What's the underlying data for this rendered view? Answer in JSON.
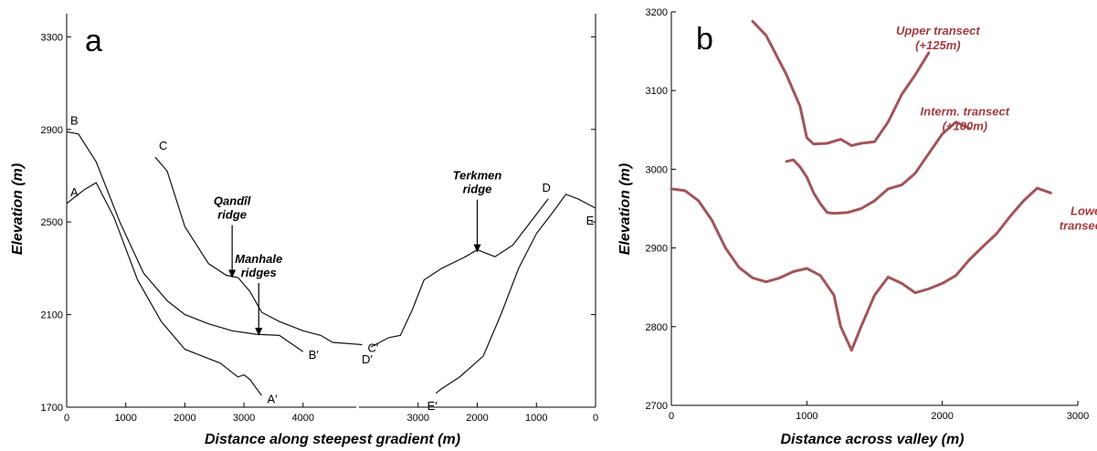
{
  "chart_data": [
    {
      "type": "line",
      "panel": "a",
      "xlabel": "Distance along steepest gradient (m)",
      "ylabel": "Elevation (m)",
      "ylim": [
        1700,
        3400
      ],
      "yticks": [
        "1700",
        "2100",
        "2500",
        "2900",
        "3300"
      ],
      "xticks_left": [
        "0",
        "1000",
        "2000",
        "3000",
        "4000"
      ],
      "xticks_right": [
        "3000",
        "2000",
        "1000",
        "0"
      ],
      "profiles_left": [
        {
          "start": "A",
          "end": "A′",
          "points": [
            [
              0,
              2580
            ],
            [
              300,
              2640
            ],
            [
              500,
              2670
            ],
            [
              800,
              2520
            ],
            [
              1200,
              2250
            ],
            [
              1600,
              2070
            ],
            [
              2000,
              1950
            ],
            [
              2300,
              1920
            ],
            [
              2600,
              1890
            ],
            [
              2900,
              1830
            ],
            [
              3000,
              1840
            ],
            [
              3100,
              1820
            ],
            [
              3300,
              1750
            ]
          ]
        },
        {
          "start": "B",
          "end": "B′",
          "points": [
            [
              0,
              2890
            ],
            [
              200,
              2880
            ],
            [
              500,
              2760
            ],
            [
              900,
              2500
            ],
            [
              1300,
              2280
            ],
            [
              1700,
              2160
            ],
            [
              2000,
              2100
            ],
            [
              2400,
              2060
            ],
            [
              2800,
              2030
            ],
            [
              3200,
              2015
            ],
            [
              3600,
              2010
            ],
            [
              4000,
              1940
            ]
          ]
        },
        {
          "start": "C",
          "end": "C′",
          "points": [
            [
              1500,
              2780
            ],
            [
              1700,
              2720
            ],
            [
              2000,
              2480
            ],
            [
              2400,
              2320
            ],
            [
              2700,
              2270
            ],
            [
              2900,
              2260
            ],
            [
              3100,
              2200
            ],
            [
              3300,
              2110
            ],
            [
              3600,
              2070
            ],
            [
              4000,
              2030
            ],
            [
              4300,
              2010
            ],
            [
              4500,
              1980
            ],
            [
              5000,
              1970
            ]
          ]
        }
      ],
      "profiles_right": [
        {
          "start": "D′",
          "end": "D",
          "points": [
            [
              3800,
              1960
            ],
            [
              3500,
              2000
            ],
            [
              3300,
              2010
            ],
            [
              3100,
              2120
            ],
            [
              2900,
              2250
            ],
            [
              2600,
              2300
            ],
            [
              2200,
              2350
            ],
            [
              2000,
              2380
            ],
            [
              1700,
              2350
            ],
            [
              1400,
              2400
            ],
            [
              1100,
              2500
            ],
            [
              800,
              2600
            ]
          ]
        },
        {
          "start": "E′",
          "end": "E",
          "points": [
            [
              2700,
              1760
            ],
            [
              2600,
              1780
            ],
            [
              2300,
              1830
            ],
            [
              1900,
              1920
            ],
            [
              1600,
              2100
            ],
            [
              1300,
              2300
            ],
            [
              1000,
              2450
            ],
            [
              700,
              2550
            ],
            [
              500,
              2620
            ],
            [
              300,
              2600
            ],
            [
              0,
              2560
            ]
          ]
        }
      ],
      "annotations": [
        {
          "text": [
            "Qandîl",
            "ridge"
          ],
          "x": 2800,
          "y": 2250,
          "side": "left"
        },
        {
          "text": [
            "Manhale",
            "ridges"
          ],
          "x": 3250,
          "y": 2000,
          "side": "left"
        },
        {
          "text": [
            "Terkmen",
            "ridge"
          ],
          "x": 2000,
          "y": 2360,
          "side": "right"
        }
      ]
    },
    {
      "type": "line",
      "panel": "b",
      "xlabel": "Distance across valley (m)",
      "ylabel": "Elevation (m)",
      "xlim": [
        0,
        3000
      ],
      "ylim": [
        2700,
        3200
      ],
      "xticks": [
        "0",
        "1000",
        "2000",
        "3000"
      ],
      "yticks": [
        "2700",
        "2800",
        "2900",
        "3000",
        "3100",
        "3200"
      ],
      "series": [
        {
          "name": [
            "Upper transect",
            "(+125m)"
          ],
          "points": [
            [
              600,
              3188
            ],
            [
              700,
              3170
            ],
            [
              850,
              3120
            ],
            [
              950,
              3080
            ],
            [
              1000,
              3040
            ],
            [
              1050,
              3032
            ],
            [
              1150,
              3033
            ],
            [
              1250,
              3038
            ],
            [
              1330,
              3030
            ],
            [
              1400,
              3033
            ],
            [
              1500,
              3035
            ],
            [
              1600,
              3060
            ],
            [
              1700,
              3095
            ],
            [
              1800,
              3120
            ],
            [
              1900,
              3148
            ]
          ]
        },
        {
          "name": [
            "Interm. transect",
            "(+100m)"
          ],
          "points": [
            [
              850,
              3010
            ],
            [
              900,
              3012
            ],
            [
              950,
              3003
            ],
            [
              1000,
              2990
            ],
            [
              1050,
              2970
            ],
            [
              1100,
              2956
            ],
            [
              1150,
              2945
            ],
            [
              1200,
              2944
            ],
            [
              1300,
              2945
            ],
            [
              1400,
              2950
            ],
            [
              1500,
              2960
            ],
            [
              1600,
              2975
            ],
            [
              1700,
              2980
            ],
            [
              1800,
              2995
            ],
            [
              1900,
              3020
            ],
            [
              2000,
              3045
            ],
            [
              2100,
              3060
            ],
            [
              2200,
              3052
            ]
          ]
        },
        {
          "name": [
            "Lower",
            "transect"
          ],
          "points": [
            [
              0,
              2975
            ],
            [
              100,
              2973
            ],
            [
              200,
              2960
            ],
            [
              300,
              2935
            ],
            [
              400,
              2900
            ],
            [
              500,
              2875
            ],
            [
              600,
              2862
            ],
            [
              700,
              2857
            ],
            [
              800,
              2862
            ],
            [
              900,
              2870
            ],
            [
              1000,
              2874
            ],
            [
              1100,
              2865
            ],
            [
              1200,
              2840
            ],
            [
              1250,
              2800
            ],
            [
              1330,
              2770
            ],
            [
              1400,
              2800
            ],
            [
              1500,
              2840
            ],
            [
              1600,
              2863
            ],
            [
              1700,
              2855
            ],
            [
              1800,
              2843
            ],
            [
              1900,
              2848
            ],
            [
              2000,
              2855
            ],
            [
              2100,
              2865
            ],
            [
              2200,
              2885
            ],
            [
              2300,
              2902
            ],
            [
              2400,
              2918
            ],
            [
              2500,
              2940
            ],
            [
              2600,
              2960
            ],
            [
              2700,
              2976
            ],
            [
              2800,
              2970
            ]
          ]
        }
      ]
    }
  ]
}
